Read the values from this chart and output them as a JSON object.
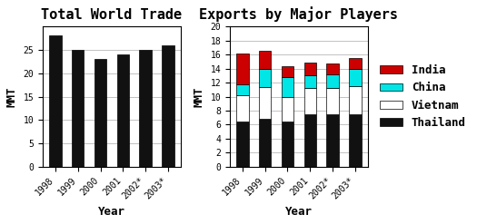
{
  "left_title": "Total World Trade",
  "right_title": "Exports by Major Players",
  "years": [
    "1998",
    "1999",
    "2000",
    "2001",
    "2002*",
    "2003*"
  ],
  "world_trade": [
    28,
    25,
    23,
    24,
    25,
    26
  ],
  "thailand": [
    6.5,
    6.8,
    6.5,
    7.5,
    7.5,
    7.5
  ],
  "vietnam": [
    3.7,
    4.5,
    3.5,
    3.7,
    3.7,
    4.0
  ],
  "china": [
    1.5,
    2.7,
    2.8,
    1.8,
    2.0,
    2.5
  ],
  "india": [
    4.5,
    2.5,
    1.5,
    1.8,
    1.5,
    1.5
  ],
  "ylabel": "MMT",
  "xlabel": "Year",
  "left_ylim": [
    0,
    30
  ],
  "right_ylim": [
    0,
    20
  ],
  "left_yticks": [
    0,
    5,
    10,
    15,
    20,
    25
  ],
  "right_yticks": [
    0,
    2,
    4,
    6,
    8,
    10,
    12,
    14,
    16,
    18,
    20
  ],
  "bar_color_world": "#111111",
  "bar_color_thailand": "#111111",
  "bar_color_vietnam": "#ffffff",
  "bar_color_china": "#00e5e5",
  "bar_color_india": "#cc0000",
  "background_color": "#ffffff",
  "grid_color": "#aaaaaa",
  "title_fontsize": 11,
  "label_fontsize": 9,
  "tick_fontsize": 7,
  "legend_fontsize": 9
}
